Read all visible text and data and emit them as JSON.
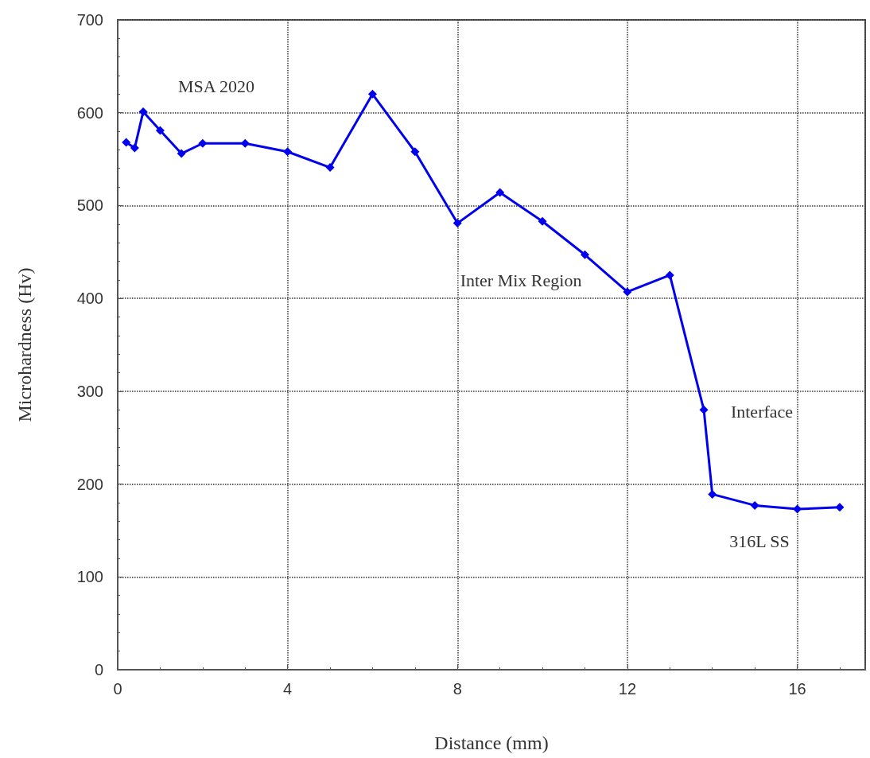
{
  "chart_data": {
    "type": "line",
    "xlabel": "Distance (mm)",
    "ylabel": "Microhardness (Hv)",
    "x": [
      0.2,
      0.4,
      0.6,
      1.0,
      1.5,
      2,
      3,
      4,
      5,
      6,
      7,
      8,
      9,
      10,
      11,
      12,
      13,
      13.8,
      14,
      15,
      16,
      17
    ],
    "series": [
      {
        "color": "#0000ee",
        "values": [
          568,
          562,
          601,
          581,
          556,
          567,
          567,
          558,
          541,
          620,
          558,
          481,
          514,
          483,
          447,
          407,
          425,
          280,
          189,
          177,
          173,
          175
        ]
      }
    ],
    "xlim": [
      0,
      17.6
    ],
    "xticks": [
      0,
      4,
      8,
      12,
      16
    ],
    "ylim": [
      0,
      700
    ],
    "yticks": [
      0,
      100,
      200,
      300,
      400,
      500,
      600,
      700
    ],
    "grid": true,
    "marker": "diamond",
    "line_style": "solid",
    "annotations": [
      "MSA 2020",
      "Inter Mix Region",
      "Interface",
      "316L SS"
    ]
  }
}
